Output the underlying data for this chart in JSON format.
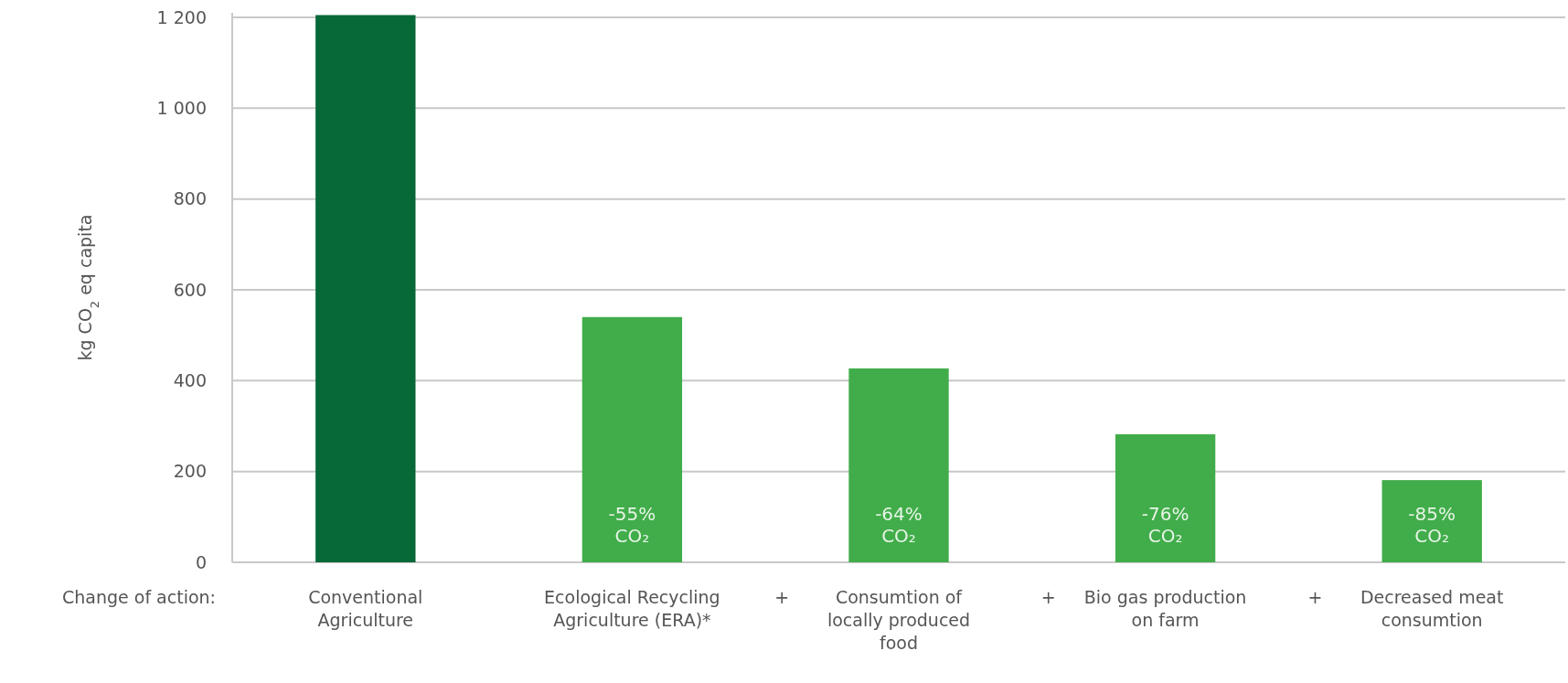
{
  "chart_data": {
    "type": "bar",
    "ylabel": "kg CO$_{2}$ eq capita",
    "categories": [
      "Conventional Agriculture",
      "Ecological Recycling Agriculture (ERA)*",
      "Consumtion of locally produced food",
      "Bio gas production on farm",
      "Decreased meat consumtion"
    ],
    "values": [
      1205,
      540,
      427,
      282,
      181
    ],
    "colors": [
      "#076838",
      "#41ad4a",
      "#41ad4a",
      "#41ad4a",
      "#41ad4a"
    ],
    "ylim": [
      0,
      1210
    ],
    "yticks": [
      0,
      200,
      400,
      600,
      800,
      {
        "value": 1000,
        "label": "1 000"
      },
      {
        "value": 1200,
        "label": "1 200"
      }
    ],
    "grid": "y",
    "annotations": [
      "Change of action:",
      "+",
      "+",
      "+",
      {
        "text": "-55% CO₂",
        "x": "Ecological Recycling Agriculture (ERA)*",
        "y": 0
      },
      {
        "text": "-64% CO₂",
        "x": "Consumtion of locally produced food",
        "y": 0
      },
      {
        "text": "-76% CO₂",
        "x": "Bio gas production on farm",
        "y": 0
      },
      {
        "text": "-85% CO₂",
        "x": "Decreased meat consumtion",
        "y": 0
      }
    ]
  }
}
